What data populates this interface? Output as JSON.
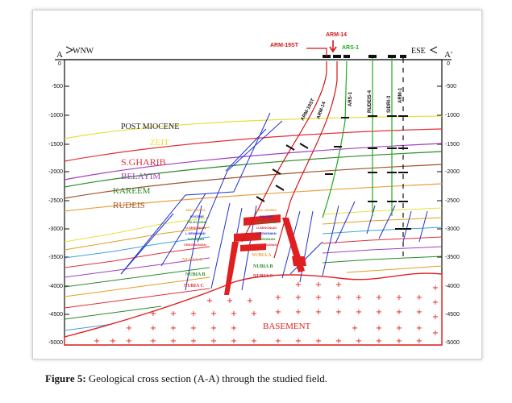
{
  "section": {
    "left_end": "A",
    "right_end": "A′",
    "left_direction": "WNW",
    "right_direction": "ESE",
    "left_zero": "0",
    "right_zero": "0",
    "depth_ticks_left": [
      "-500",
      "-1000",
      "-1500",
      "-2000",
      "-2500",
      "-3000",
      "-3500",
      "-4000",
      "-4500",
      "-5000"
    ],
    "depth_ticks_right": [
      "-500",
      "-1000",
      "-1500",
      "-2000",
      "-2500",
      "-3000",
      "-3500",
      "-4000",
      "-4500",
      "-5000"
    ]
  },
  "wells": {
    "arm19st": "ARM-19ST",
    "arm14_top": "ARM-14",
    "ars1_top": "ARS-1",
    "arm19st_trace": "ARM-19ST",
    "arm14_trace": "ARM-14",
    "ars1_trace": "ARS-1",
    "rudeis4": "RUDEIS-4",
    "sidri3": "SIDRI-3",
    "arm1": "ARM-1"
  },
  "formations": {
    "post_miocene": "POST MIOCENE",
    "zeit": "ZEIT",
    "s_gharib": "S.GHARIB",
    "belayim": "BELAYIM",
    "kareem": "KAREEM",
    "rudeis": "RUDEIS",
    "abu_zenima_l": "ABU ZENIMA",
    "eocene_l": "EOCENE",
    "paleocene_l": "PALEOCENE",
    "u_senonian_l": "U.SENONIAN",
    "l_senonian_l": "L.SENONIAN",
    "turonian_l": "TURONIAN",
    "cenomanian_l": "CENOMANIAN",
    "nubia_a_l": "NUBIA A",
    "nubia_b_l": "NUBIA B",
    "nubia_c_l": "NUBIA C",
    "abu_zenima_r": "ABU ZENIMA",
    "eocene_r": "EOCENE",
    "paleocene_r": "PALEOCENE",
    "u_senonian_r": "U.SENONIAN",
    "l_senonian_r": "L.SENONIAN",
    "turonian_r": "TURONIAN",
    "cenomanian_r": "CENOMANIAN",
    "nubia_a_r": "NUBIA A",
    "nubia_b_r": "NUBIA B",
    "nubia_c_r": "NUBIA C",
    "basement": "BASEMENT"
  },
  "colors": {
    "post_miocene": "#222222",
    "zeit": "#e8e03a",
    "s_gharib": "#e0303a",
    "belayim": "#a040c0",
    "kareem": "#2a8a2a",
    "rudeis": "#a0522d",
    "fault": "#2233cc",
    "basement": "#e02020",
    "well_red": "#d01818",
    "well_green": "#22aa22"
  },
  "caption": {
    "label": "Figure 5:",
    "text": " Geological cross section (A-A) through the studied field."
  }
}
